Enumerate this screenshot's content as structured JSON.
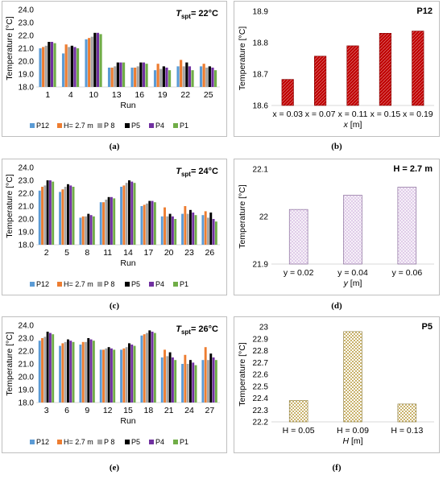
{
  "colors": {
    "P12": "#5b9bd5",
    "H= 2.7 m": "#ed7d31",
    "P 8": "#a5a5a5",
    "P5": "#000000",
    "P4": "#7030a0",
    "P1": "#70ad47",
    "b_fill": "#c00000",
    "d_fill": "#dcc6e6",
    "f_fill": "#c9b26b"
  },
  "captions": [
    "(a)",
    "(b)",
    "(c)",
    "(d)",
    "(e)",
    "(f)"
  ],
  "chart_data": [
    {
      "id": "a",
      "type": "bar",
      "title_main": "T",
      "title_sub": "spt",
      "title_rest": "= 22°C",
      "xlabel": "Run",
      "ylabel": "Temperature [°C]",
      "ylim": [
        18.0,
        24.0
      ],
      "yticks": [
        "18.0",
        "19.0",
        "20.0",
        "21.0",
        "22.0",
        "23.0",
        "24.0"
      ],
      "categories": [
        "1",
        "4",
        "10",
        "13",
        "16",
        "19",
        "22",
        "25"
      ],
      "legend": "bottom",
      "series": [
        {
          "name": "P12",
          "values": [
            21.0,
            20.6,
            21.7,
            19.5,
            19.5,
            19.3,
            19.6,
            19.6
          ]
        },
        {
          "name": "H= 2.7 m",
          "values": [
            21.1,
            21.3,
            21.8,
            19.5,
            19.5,
            19.8,
            20.1,
            19.8
          ]
        },
        {
          "name": "P 8",
          "values": [
            21.2,
            21.1,
            21.9,
            19.6,
            19.6,
            19.4,
            19.6,
            19.5
          ]
        },
        {
          "name": "P5",
          "values": [
            21.5,
            21.2,
            22.2,
            19.9,
            19.9,
            19.6,
            19.9,
            19.6
          ]
        },
        {
          "name": "P4",
          "values": [
            21.5,
            21.1,
            22.2,
            19.9,
            19.9,
            19.5,
            19.6,
            19.5
          ]
        },
        {
          "name": "P1",
          "values": [
            21.4,
            21.0,
            22.1,
            19.9,
            19.8,
            19.3,
            19.3,
            19.3
          ]
        }
      ]
    },
    {
      "id": "b",
      "type": "bar",
      "title": "P12",
      "xlabel_var": "x",
      "xlabel_unit": " [m]",
      "ylabel": "Temperature [°C]",
      "ylim": [
        18.6,
        18.9
      ],
      "yticks": [
        "18.6",
        "18.7",
        "18.8",
        "18.9"
      ],
      "categories": [
        "x = 0.03",
        "x = 0.07",
        "x = 0.11",
        "x = 0.15",
        "x = 0.19"
      ],
      "values": [
        18.683,
        18.757,
        18.79,
        18.83,
        18.837
      ]
    },
    {
      "id": "c",
      "type": "bar",
      "title_main": "T",
      "title_sub": "spt",
      "title_rest": "= 24°C",
      "xlabel": "Run",
      "ylabel": "Temperature [°C]",
      "ylim": [
        18.0,
        24.0
      ],
      "yticks": [
        "18.0",
        "19.0",
        "20.0",
        "21.0",
        "22.0",
        "23.0",
        "24.0"
      ],
      "categories": [
        "2",
        "5",
        "8",
        "11",
        "14",
        "17",
        "20",
        "23",
        "26"
      ],
      "legend": "bottom",
      "series": [
        {
          "name": "P12",
          "values": [
            22.2,
            22.1,
            20.1,
            21.3,
            22.5,
            21.0,
            20.2,
            20.4,
            20.3
          ]
        },
        {
          "name": "H= 2.7 m",
          "values": [
            22.5,
            22.3,
            20.2,
            21.3,
            22.6,
            21.1,
            20.9,
            21.0,
            20.6
          ]
        },
        {
          "name": "P 8",
          "values": [
            22.6,
            22.5,
            20.2,
            21.5,
            22.8,
            21.2,
            20.2,
            20.4,
            20.1
          ]
        },
        {
          "name": "P5",
          "values": [
            23.0,
            22.7,
            20.4,
            21.7,
            23.0,
            21.4,
            20.4,
            20.7,
            20.5
          ]
        },
        {
          "name": "P4",
          "values": [
            23.0,
            22.6,
            20.3,
            21.7,
            22.9,
            21.4,
            20.2,
            20.5,
            20.0
          ]
        },
        {
          "name": "P1",
          "values": [
            22.9,
            22.5,
            20.2,
            21.6,
            22.8,
            21.3,
            20.0,
            20.3,
            19.8
          ]
        }
      ]
    },
    {
      "id": "d",
      "type": "bar",
      "title": "H = 2.7 m",
      "xlabel_var": "y",
      "xlabel_unit": " [m]",
      "ylabel": "Temperature [°C]",
      "ylim": [
        21.9,
        22.1
      ],
      "yticks": [
        "21.9",
        "22",
        "22.1"
      ],
      "categories": [
        "y = 0.02",
        "y = 0.04",
        "y = 0.06"
      ],
      "values": [
        22.015,
        22.045,
        22.062
      ]
    },
    {
      "id": "e",
      "type": "bar",
      "title_main": "T",
      "title_sub": "spt",
      "title_rest": "= 26°C",
      "xlabel": "Run",
      "ylabel": "Temperature [°C]",
      "ylim": [
        18.0,
        24.0
      ],
      "yticks": [
        "18.0",
        "19.0",
        "20.0",
        "21.0",
        "22.0",
        "23.0",
        "24.0"
      ],
      "categories": [
        "3",
        "6",
        "9",
        "12",
        "15",
        "18",
        "21",
        "24",
        "27"
      ],
      "legend": "bottom",
      "series": [
        {
          "name": "P12",
          "values": [
            22.8,
            22.4,
            22.5,
            22.1,
            22.1,
            23.2,
            21.5,
            21.0,
            21.3
          ]
        },
        {
          "name": "H= 2.7 m",
          "values": [
            23.0,
            22.6,
            22.7,
            22.1,
            22.2,
            23.3,
            22.1,
            21.7,
            22.3
          ]
        },
        {
          "name": "P 8",
          "values": [
            23.1,
            22.7,
            22.7,
            22.2,
            22.3,
            23.4,
            21.6,
            21.0,
            21.3
          ]
        },
        {
          "name": "P5",
          "values": [
            23.5,
            22.9,
            23.0,
            22.3,
            22.6,
            23.6,
            21.9,
            21.3,
            21.8
          ]
        },
        {
          "name": "P4",
          "values": [
            23.4,
            22.8,
            22.9,
            22.2,
            22.5,
            23.5,
            21.5,
            21.1,
            21.5
          ]
        },
        {
          "name": "P1",
          "values": [
            23.3,
            22.7,
            22.8,
            22.1,
            22.4,
            23.4,
            21.3,
            20.9,
            21.3
          ]
        }
      ]
    },
    {
      "id": "f",
      "type": "bar",
      "title": "P5",
      "xlabel_var": "H",
      "xlabel_unit": " [m]",
      "ylabel": "Temperature [°C]",
      "ylim": [
        22.2,
        23.0
      ],
      "yticks": [
        "22.2",
        "22.3",
        "22.4",
        "22.5",
        "22.6",
        "22.7",
        "22.8",
        "22.9",
        "23"
      ],
      "categories": [
        "H = 0.05",
        "H = 0.09",
        "H = 0.13"
      ],
      "values": [
        22.38,
        22.96,
        22.35
      ]
    }
  ]
}
